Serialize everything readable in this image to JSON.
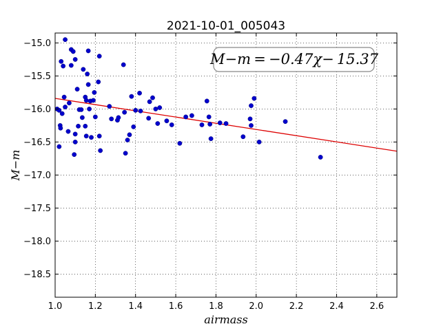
{
  "chart_data": {
    "type": "scatter",
    "title": "2021-10-01_005043",
    "xlabel": "airmass",
    "ylabel": "M−m",
    "xlim": [
      1.0,
      2.7
    ],
    "ylim": [
      -18.85,
      -14.85
    ],
    "y_inverted": true,
    "grid": true,
    "xticks": [
      1.0,
      1.2,
      1.4,
      1.6,
      1.8,
      2.0,
      2.2,
      2.4,
      2.6
    ],
    "xtick_labels": [
      "1.0",
      "1.2",
      "1.4",
      "1.6",
      "1.8",
      "2.0",
      "2.2",
      "2.4",
      "2.6"
    ],
    "yticks": [
      -15.0,
      -15.5,
      -16.0,
      -16.5,
      -17.0,
      -17.5,
      -18.0,
      -18.5
    ],
    "ytick_labels": [
      "−15.0",
      "−15.5",
      "−16.0",
      "−16.5",
      "−17.0",
      "−17.5",
      "−18.0",
      "−18.5"
    ],
    "annotation": "M−m = −0.47χ− 15.37",
    "fit": {
      "slope": -0.47,
      "intercept": -15.37,
      "color": "#dd0000"
    },
    "point_color": "#0000cc",
    "points": [
      [
        1.01,
        -16.0
      ],
      [
        1.02,
        -16.57
      ],
      [
        1.02,
        -16.02
      ],
      [
        1.025,
        -16.25
      ],
      [
        1.027,
        -16.29
      ],
      [
        1.03,
        -15.28
      ],
      [
        1.035,
        -16.07
      ],
      [
        1.04,
        -15.35
      ],
      [
        1.045,
        -15.82
      ],
      [
        1.05,
        -14.95
      ],
      [
        1.05,
        -15.97
      ],
      [
        1.065,
        -16.34
      ],
      [
        1.07,
        -15.91
      ],
      [
        1.08,
        -15.1
      ],
      [
        1.08,
        -15.34
      ],
      [
        1.09,
        -15.13
      ],
      [
        1.095,
        -16.69
      ],
      [
        1.1,
        -15.25
      ],
      [
        1.1,
        -16.38
      ],
      [
        1.1,
        -16.5
      ],
      [
        1.11,
        -15.7
      ],
      [
        1.115,
        -16.26
      ],
      [
        1.12,
        -16.01
      ],
      [
        1.13,
        -16.01
      ],
      [
        1.135,
        -16.13
      ],
      [
        1.14,
        -15.4
      ],
      [
        1.15,
        -16.26
      ],
      [
        1.15,
        -15.82
      ],
      [
        1.155,
        -15.87
      ],
      [
        1.155,
        -16.41
      ],
      [
        1.16,
        -15.47
      ],
      [
        1.165,
        -15.12
      ],
      [
        1.165,
        -15.63
      ],
      [
        1.17,
        -16.0
      ],
      [
        1.175,
        -15.88
      ],
      [
        1.18,
        -16.43
      ],
      [
        1.19,
        -15.87
      ],
      [
        1.195,
        -15.75
      ],
      [
        1.2,
        -16.12
      ],
      [
        1.215,
        -15.59
      ],
      [
        1.22,
        -15.2
      ],
      [
        1.22,
        -16.41
      ],
      [
        1.225,
        -16.63
      ],
      [
        1.27,
        -15.96
      ],
      [
        1.28,
        -16.15
      ],
      [
        1.31,
        -16.17
      ],
      [
        1.315,
        -16.13
      ],
      [
        1.34,
        -15.33
      ],
      [
        1.345,
        -16.05
      ],
      [
        1.35,
        -16.67
      ],
      [
        1.36,
        -16.47
      ],
      [
        1.37,
        -16.39
      ],
      [
        1.38,
        -15.81
      ],
      [
        1.39,
        -16.27
      ],
      [
        1.4,
        -16.02
      ],
      [
        1.42,
        -15.76
      ],
      [
        1.425,
        -16.03
      ],
      [
        1.465,
        -16.14
      ],
      [
        1.47,
        -15.89
      ],
      [
        1.485,
        -15.83
      ],
      [
        1.5,
        -16.0
      ],
      [
        1.51,
        -16.22
      ],
      [
        1.52,
        -15.98
      ],
      [
        1.555,
        -16.18
      ],
      [
        1.58,
        -16.24
      ],
      [
        1.62,
        -16.52
      ],
      [
        1.65,
        -16.12
      ],
      [
        1.68,
        -16.1
      ],
      [
        1.73,
        -16.24
      ],
      [
        1.755,
        -15.88
      ],
      [
        1.765,
        -16.12
      ],
      [
        1.77,
        -16.23
      ],
      [
        1.775,
        -16.45
      ],
      [
        1.82,
        -16.21
      ],
      [
        1.85,
        -16.22
      ],
      [
        1.935,
        -16.42
      ],
      [
        1.97,
        -16.15
      ],
      [
        1.975,
        -16.25
      ],
      [
        1.975,
        -15.95
      ],
      [
        1.99,
        -15.84
      ],
      [
        2.015,
        -16.5
      ],
      [
        2.145,
        -16.19
      ],
      [
        2.32,
        -16.73
      ]
    ]
  }
}
